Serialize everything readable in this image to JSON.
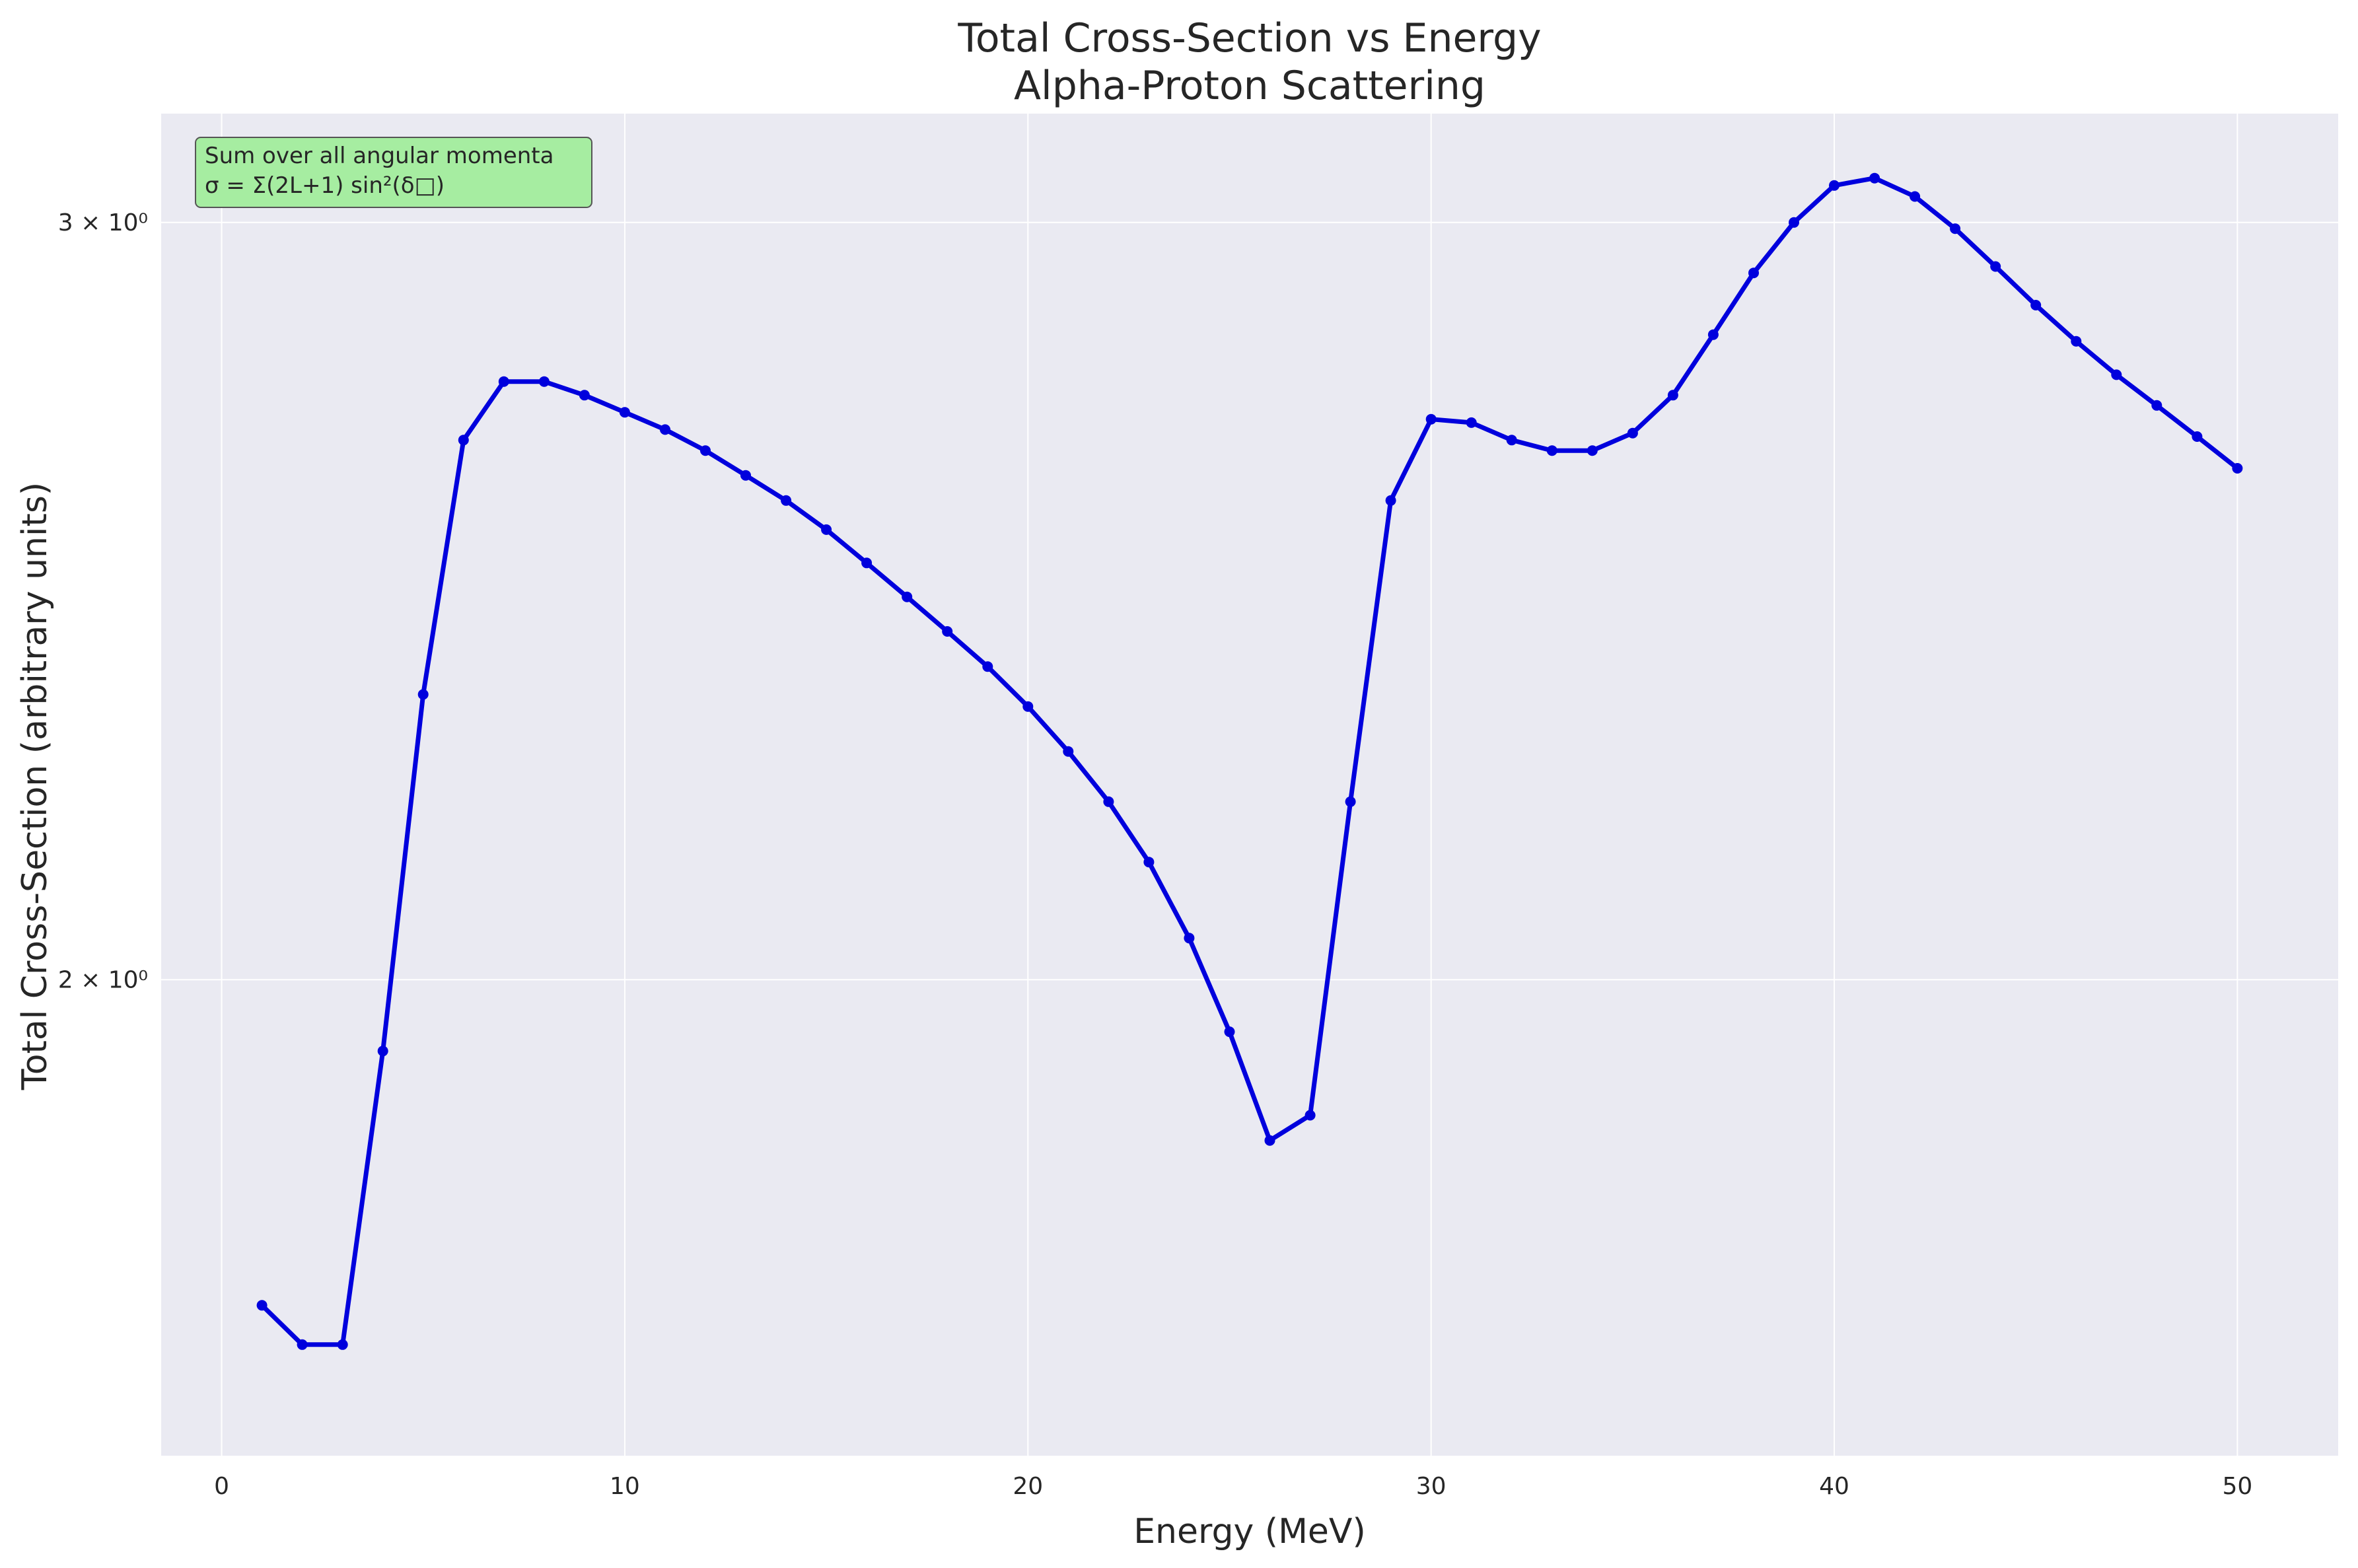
{
  "chart_data": {
    "type": "line",
    "title": "Total Cross-Section vs Energy",
    "subtitle": "Alpha-Proton Scattering",
    "xlabel": "Energy (MeV)",
    "ylabel": "Total Cross-Section (arbitrary units)",
    "xlim": [
      -1.5,
      52.5
    ],
    "ylim": [
      1.55,
      3.18
    ],
    "yscale": "log",
    "grid": true,
    "x_ticks": [
      0,
      10,
      20,
      30,
      40,
      50
    ],
    "x_tick_labels": [
      "0",
      "10",
      "20",
      "30",
      "40",
      "50"
    ],
    "y_ticks": [
      2,
      3
    ],
    "y_tick_labels": [
      "2 × 10⁰",
      "3 × 10⁰"
    ],
    "series": [
      {
        "color": "#0000dd",
        "marker": "circle",
        "x": [
          1,
          2,
          3,
          4,
          5,
          6,
          7,
          8,
          9,
          10,
          11,
          12,
          13,
          14,
          15,
          16,
          17,
          18,
          19,
          20,
          21,
          22,
          23,
          24,
          25,
          26,
          27,
          28,
          29,
          30,
          31,
          32,
          33,
          34,
          35,
          36,
          37,
          38,
          39,
          40,
          41,
          42,
          43,
          44,
          45,
          46,
          47,
          48,
          49,
          50
        ],
        "y": [
          1.68,
          1.645,
          1.645,
          1.925,
          2.33,
          2.67,
          2.755,
          2.755,
          2.735,
          2.71,
          2.685,
          2.655,
          2.62,
          2.585,
          2.545,
          2.5,
          2.455,
          2.41,
          2.365,
          2.315,
          2.26,
          2.2,
          2.13,
          2.045,
          1.945,
          1.835,
          1.86,
          2.2,
          2.585,
          2.7,
          2.695,
          2.67,
          2.655,
          2.655,
          2.68,
          2.735,
          2.825,
          2.92,
          3.0,
          3.06,
          3.072,
          3.042,
          2.99,
          2.93,
          2.87,
          2.815,
          2.765,
          2.72,
          2.675,
          2.63
        ]
      }
    ],
    "annotation": {
      "lines": [
        "Sum over all angular momenta",
        "σ = Σ(2L+1) sin²(δ□)"
      ],
      "background": "#a6eda1",
      "position": "top-left"
    },
    "colors": {
      "plot_background": "#eaeaf2",
      "grid": "#ffffff",
      "line": "#0000dd"
    }
  }
}
